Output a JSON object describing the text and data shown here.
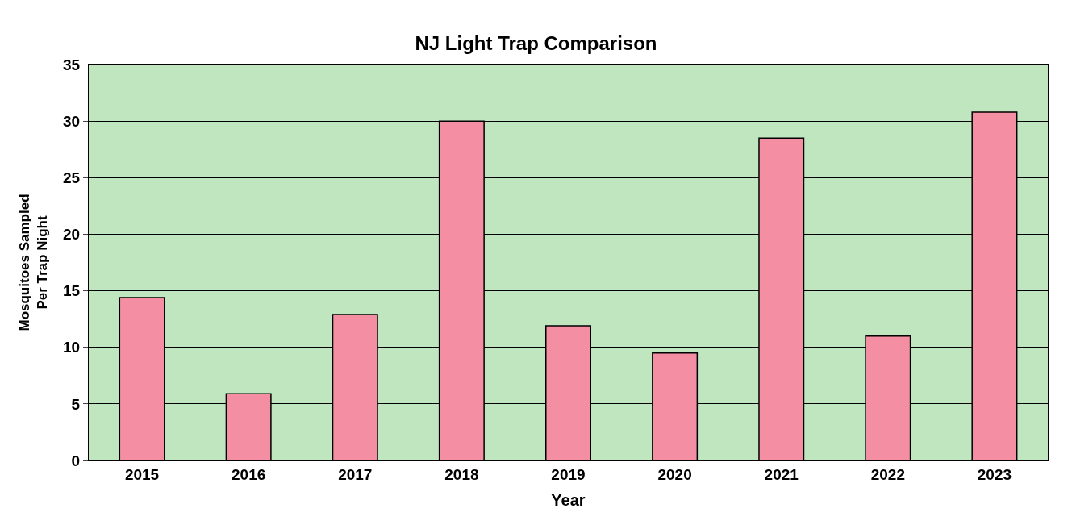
{
  "chart_data": {
    "type": "bar",
    "title": "NJ Light Trap Comparison",
    "xlabel": "Year",
    "ylabel": "Mosquitoes Sampled\nPer Trap Night",
    "categories": [
      "2015",
      "2016",
      "2017",
      "2018",
      "2019",
      "2020",
      "2021",
      "2022",
      "2023"
    ],
    "values": [
      14.4,
      5.9,
      12.9,
      30.0,
      11.9,
      9.5,
      28.5,
      11.0,
      30.8
    ],
    "color": "#f48fa3",
    "ylim": [
      0,
      35
    ],
    "yticks": [
      0,
      5,
      10,
      15,
      20,
      25,
      30,
      35
    ],
    "grid": "y",
    "legend": false
  }
}
